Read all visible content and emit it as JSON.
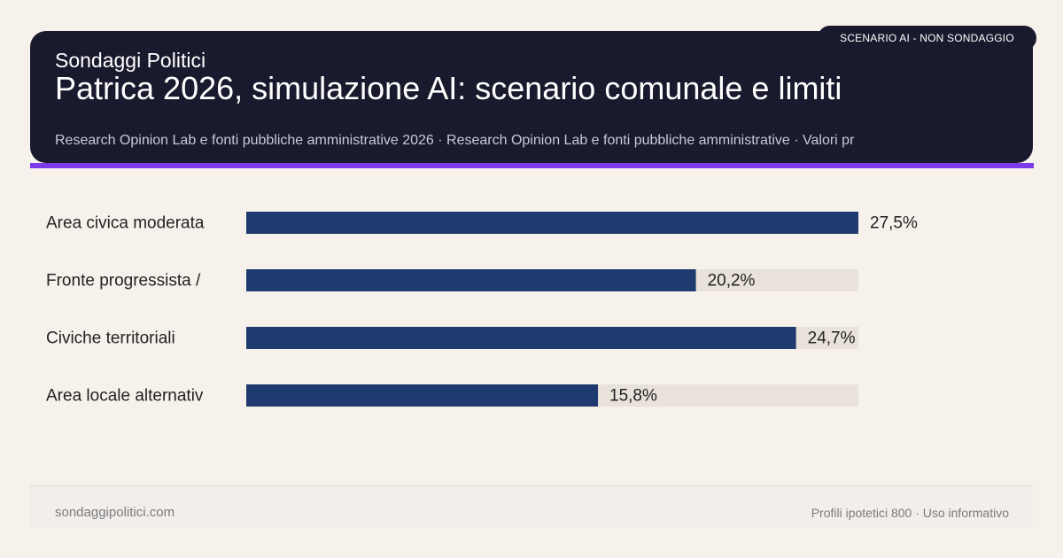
{
  "header": {
    "brand": "Sondaggi Politici",
    "title": "Patrica 2026, simulazione AI: scenario comunale e limiti",
    "subtitle": "Research Opinion Lab e fonti pubbliche amministrative 2026 · Research Opinion Lab e fonti pubbliche amministrative · Valori pr",
    "badge": "SCENARIO AI - NON SONDAGGIO"
  },
  "chart_data": {
    "type": "bar",
    "orientation": "horizontal",
    "categories": [
      "Area civica moderata",
      "Fronte progressista /",
      "Civiche territoriali",
      "Area locale alternativ"
    ],
    "values": [
      27.5,
      20.2,
      24.7,
      15.8
    ],
    "value_labels": [
      "27,5%",
      "20,2%",
      "24,7%",
      "15,8%"
    ],
    "xlim": [
      0,
      27.5
    ],
    "grid": false,
    "legend": "none",
    "colors": {
      "bar": "#1e3a6e",
      "track": "#e8e2da",
      "label": "#222222"
    }
  },
  "footer": {
    "site": "sondaggipolitici.com",
    "note": "Profili ipotetici 800 · Uso informativo"
  },
  "colors": {
    "header_bg": "#1a1a2e",
    "accent": "#7c3aed",
    "page_bg": "#f6f2eb"
  }
}
